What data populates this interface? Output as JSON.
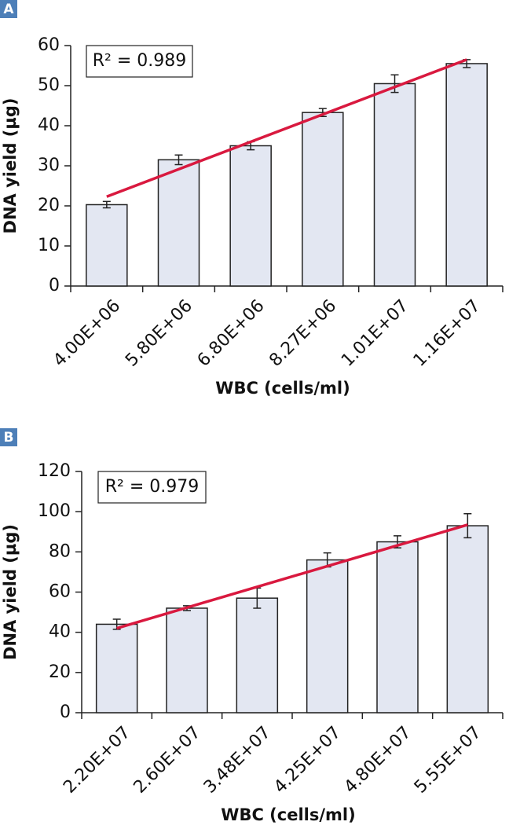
{
  "chart_data": [
    {
      "type": "bar",
      "panel": "A",
      "annotation": "R² = 0.989",
      "categories": [
        "4.00E+06",
        "5.80E+06",
        "6.80E+06",
        "8.27E+06",
        "1.01E+07",
        "1.16E+07"
      ],
      "values": [
        20.3,
        31.5,
        35,
        43.3,
        50.5,
        55.5
      ],
      "errors": [
        0.8,
        1.2,
        1,
        1,
        2.2,
        1
      ],
      "color": "#e3e7f2",
      "trendline": {
        "color": "#d9193f",
        "values": [
          22.3,
          56.5
        ]
      },
      "x_label": "WBC (cells/ml)",
      "y_label": "DNA yield (µg)",
      "ylim": [
        0,
        60
      ],
      "yticks": [
        0,
        10,
        20,
        30,
        40,
        50,
        60
      ]
    },
    {
      "type": "bar",
      "panel": "B",
      "annotation": "R² = 0.979",
      "categories": [
        "2.20E+07",
        "2.60E+07",
        "3.48E+07",
        "4.25E+07",
        "4.80E+07",
        "5.55E+07"
      ],
      "values": [
        44,
        52,
        57,
        76,
        85,
        93
      ],
      "errors": [
        2.5,
        1.2,
        5,
        3.5,
        3,
        6
      ],
      "color": "#e3e7f2",
      "trendline": {
        "color": "#d9193f",
        "values": [
          42,
          93.5
        ]
      },
      "x_label": "WBC (cells/ml)",
      "y_label": "DNA yield (µg)",
      "ylim": [
        0,
        120
      ],
      "yticks": [
        0,
        20,
        40,
        60,
        80,
        100,
        120
      ]
    }
  ]
}
